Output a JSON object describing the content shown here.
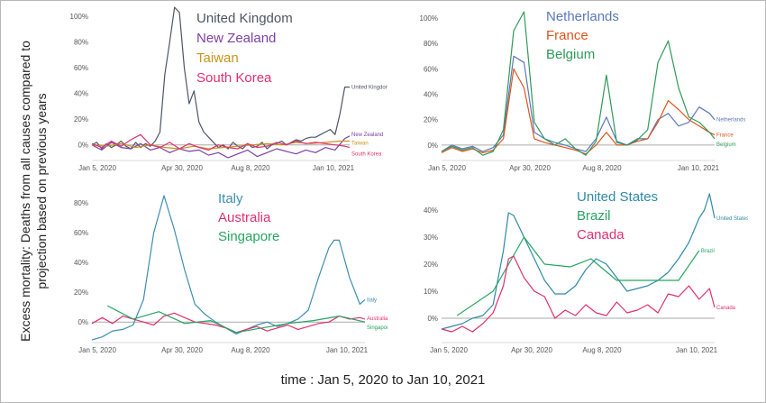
{
  "figure": {
    "ylabel_line1": "Excess mortality: Deaths from all causes compared to",
    "ylabel_line2": "projection based on previous years",
    "xlabel": "time : Jan 5, 2020 to Jan 10, 2021"
  },
  "chart_data": [
    {
      "type": "line",
      "x_ticks": [
        "Jan 5, 2020",
        "Apr 30, 2020",
        "Aug 8, 2020",
        "Jan 10, 2021"
      ],
      "y_ticks": [
        "0%",
        "20%",
        "40%",
        "60%",
        "80%",
        "100%"
      ],
      "ylim": [
        -10,
        105
      ],
      "grid": false,
      "legend_position": "top-center",
      "series": [
        {
          "name": "United Kingdom",
          "label": "United Kingdom",
          "color": "#4d5566",
          "x": [
            0,
            1,
            2,
            3,
            4,
            5,
            6,
            7,
            8,
            9,
            10,
            11,
            12,
            13,
            14,
            15,
            16,
            17,
            18,
            19,
            20,
            21,
            22,
            23,
            24,
            25,
            26,
            27,
            28,
            29,
            30,
            31,
            32,
            33,
            34,
            35,
            36,
            37,
            38,
            39,
            40,
            41,
            42,
            43,
            44,
            45,
            46,
            47,
            48,
            49,
            50,
            51,
            52,
            53
          ],
          "values": [
            0,
            2,
            -3,
            1,
            -2,
            0,
            3,
            -1,
            -3,
            2,
            -2,
            1,
            -1,
            3,
            10,
            55,
            80,
            107,
            103,
            60,
            32,
            42,
            18,
            10,
            6,
            2,
            -2,
            0,
            -3,
            2,
            -1,
            -3,
            1,
            -2,
            -1,
            2,
            -3,
            0,
            1,
            3,
            0,
            2,
            4,
            3,
            5,
            6,
            6,
            8,
            10,
            12,
            8,
            24,
            45,
            45
          ]
        },
        {
          "name": "New Zealand",
          "label": "New Zealand",
          "color": "#7e3fa6",
          "x": [
            0,
            2,
            4,
            6,
            8,
            10,
            12,
            14,
            16,
            18,
            20,
            22,
            24,
            26,
            28,
            30,
            32,
            34,
            36,
            38,
            40,
            42,
            44,
            46,
            48,
            50,
            52,
            53
          ],
          "values": [
            0,
            -4,
            2,
            -2,
            -3,
            1,
            -4,
            -2,
            -6,
            -3,
            -5,
            -4,
            -8,
            -6,
            -10,
            -7,
            -4,
            -9,
            -6,
            -3,
            -5,
            -7,
            -4,
            -6,
            -2,
            -4,
            5,
            7
          ]
        },
        {
          "name": "Taiwan",
          "label": "Taiwan",
          "color": "#c8941a",
          "x": [
            0,
            3,
            6,
            9,
            12,
            15,
            18,
            21,
            24,
            27,
            30,
            33,
            36,
            39,
            42,
            45,
            48,
            51,
            53
          ],
          "values": [
            0,
            -1,
            1,
            -2,
            0,
            -2,
            -3,
            -1,
            -3,
            -2,
            -1,
            0,
            1,
            0,
            2,
            1,
            2,
            3,
            3
          ]
        },
        {
          "name": "South Korea",
          "label": "South Korea",
          "color": "#e0306e",
          "x": [
            0,
            2,
            4,
            6,
            8,
            10,
            12,
            14,
            16,
            18,
            20,
            22,
            24,
            26,
            28,
            30,
            32,
            34,
            36,
            38,
            40,
            42,
            44,
            46,
            48,
            50,
            52,
            53
          ],
          "values": [
            1,
            -2,
            3,
            -1,
            4,
            8,
            0,
            -2,
            2,
            -3,
            1,
            -2,
            -4,
            0,
            -2,
            -3,
            1,
            -2,
            -1,
            2,
            0,
            3,
            1,
            2,
            1,
            0,
            -1,
            -2
          ]
        }
      ]
    },
    {
      "type": "line",
      "x_ticks": [
        "Jan 5, 2020",
        "Apr 30, 2020",
        "Aug 8, 2020",
        "Jan 10, 2021"
      ],
      "y_ticks": [
        "0%",
        "20%",
        "40%",
        "60%",
        "80%",
        "100%"
      ],
      "ylim": [
        -10,
        105
      ],
      "grid": false,
      "legend_position": "top-center",
      "series": [
        {
          "name": "Netherlands",
          "label": "Netherlands",
          "color": "#5a78b8",
          "x": [
            0,
            2,
            4,
            6,
            8,
            10,
            12,
            14,
            16,
            18,
            20,
            22,
            24,
            26,
            28,
            30,
            32,
            34,
            36,
            38,
            40,
            42,
            44,
            46,
            48,
            50,
            52,
            53
          ],
          "values": [
            -5,
            0,
            -3,
            -1,
            -5,
            -2,
            8,
            70,
            65,
            10,
            5,
            2,
            0,
            -3,
            -5,
            5,
            22,
            3,
            0,
            5,
            5,
            20,
            25,
            15,
            18,
            30,
            25,
            20
          ]
        },
        {
          "name": "France",
          "label": "France",
          "color": "#e0541c",
          "x": [
            0,
            2,
            4,
            6,
            8,
            10,
            12,
            14,
            16,
            18,
            20,
            22,
            24,
            26,
            28,
            30,
            32,
            34,
            36,
            38,
            40,
            42,
            44,
            46,
            48,
            50,
            52,
            53
          ],
          "values": [
            -6,
            -2,
            -5,
            -3,
            -6,
            -4,
            5,
            60,
            45,
            5,
            2,
            0,
            -2,
            -4,
            -7,
            0,
            10,
            0,
            0,
            3,
            5,
            18,
            35,
            28,
            20,
            15,
            10,
            8
          ]
        },
        {
          "name": "Belgium",
          "label": "Belgium",
          "color": "#2e9a5a",
          "x": [
            0,
            2,
            4,
            6,
            8,
            10,
            12,
            14,
            16,
            18,
            20,
            22,
            24,
            26,
            28,
            30,
            32,
            34,
            36,
            38,
            40,
            42,
            44,
            46,
            48,
            50,
            52,
            53
          ],
          "values": [
            -5,
            -1,
            -4,
            -2,
            -8,
            -5,
            12,
            90,
            105,
            18,
            5,
            0,
            5,
            -3,
            -8,
            3,
            55,
            2,
            0,
            4,
            12,
            65,
            82,
            45,
            22,
            18,
            10,
            5
          ]
        }
      ]
    },
    {
      "type": "line",
      "x_ticks": [
        "Jan 5, 2020",
        "Apr 30, 2020",
        "Aug 8, 2020",
        "Jan 10, 2021"
      ],
      "y_ticks": [
        "0%",
        "20%",
        "40%",
        "60%",
        "80%"
      ],
      "ylim": [
        -12,
        88
      ],
      "grid": false,
      "legend_position": "top-center",
      "series": [
        {
          "name": "Italy",
          "label": "Italy",
          "color": "#3d8eb0",
          "x": [
            0,
            2,
            4,
            6,
            8,
            10,
            12,
            14,
            16,
            18,
            20,
            22,
            24,
            26,
            28,
            30,
            32,
            34,
            36,
            38,
            40,
            42,
            44,
            46,
            47,
            48,
            50,
            52,
            53
          ],
          "values": [
            -12,
            -10,
            -6,
            -5,
            -2,
            15,
            60,
            85,
            62,
            35,
            12,
            5,
            0,
            -4,
            -8,
            -5,
            -2,
            0,
            -3,
            -1,
            2,
            8,
            30,
            50,
            55,
            55,
            30,
            12,
            15
          ]
        },
        {
          "name": "Australia",
          "label": "Australia",
          "color": "#e0306e",
          "x": [
            0,
            2,
            4,
            6,
            8,
            10,
            12,
            14,
            16,
            18,
            20,
            22,
            24,
            26,
            28,
            30,
            32,
            34,
            36,
            38,
            40,
            42,
            44,
            46,
            48,
            50,
            52,
            53
          ],
          "values": [
            -1,
            3,
            -1,
            4,
            2,
            0,
            -2,
            4,
            6,
            3,
            0,
            -1,
            -2,
            -4,
            -7,
            -5,
            -3,
            -6,
            -4,
            -2,
            -5,
            -3,
            -1,
            0,
            4,
            2,
            3,
            2
          ]
        },
        {
          "name": "Singapore",
          "label": "Singapore",
          "color": "#27a560",
          "x": [
            3,
            8,
            13,
            18,
            23,
            28,
            33,
            38,
            43,
            48,
            53
          ],
          "values": [
            11,
            2,
            7,
            -1,
            1,
            -7,
            -4,
            -1,
            1,
            4,
            0
          ]
        }
      ]
    },
    {
      "type": "line",
      "x_ticks": [
        "Jan 5, 2020",
        "Apr 30, 2020",
        "Aug 8, 2020",
        "Jan 10, 2021"
      ],
      "y_ticks": [
        "0%",
        "10%",
        "20%",
        "30%",
        "40%"
      ],
      "ylim": [
        -8,
        47
      ],
      "grid": false,
      "legend_position": "top-center",
      "series": [
        {
          "name": "United States",
          "label": "United States",
          "color": "#2f8aa6",
          "x": [
            0,
            2,
            4,
            6,
            8,
            10,
            12,
            13,
            14,
            16,
            18,
            20,
            22,
            24,
            26,
            28,
            30,
            32,
            34,
            36,
            38,
            40,
            42,
            44,
            46,
            48,
            50,
            51,
            52,
            53
          ],
          "values": [
            -4,
            -3,
            -2,
            0,
            1,
            5,
            25,
            39,
            38,
            30,
            22,
            14,
            9,
            9,
            12,
            18,
            22,
            20,
            15,
            10,
            11,
            12,
            14,
            17,
            22,
            28,
            37,
            40,
            46,
            37
          ]
        },
        {
          "name": "Brazil",
          "label": "Brazil",
          "color": "#27a560",
          "x": [
            3,
            10,
            16,
            20,
            25,
            29,
            34,
            40,
            46,
            50
          ],
          "values": [
            1,
            10,
            30,
            20,
            19,
            22,
            14,
            14,
            14,
            25
          ]
        },
        {
          "name": "Canada",
          "label": "Canada",
          "color": "#e0306e",
          "x": [
            0,
            2,
            4,
            6,
            8,
            10,
            12,
            13,
            14,
            16,
            18,
            20,
            22,
            24,
            26,
            28,
            30,
            32,
            34,
            36,
            38,
            40,
            42,
            44,
            46,
            48,
            50,
            51,
            52,
            53
          ],
          "values": [
            -4,
            -5,
            -3,
            -5,
            -2,
            2,
            12,
            22,
            23,
            15,
            10,
            8,
            0,
            3,
            1,
            5,
            2,
            1,
            6,
            2,
            3,
            5,
            2,
            9,
            8,
            12,
            7,
            9,
            11,
            4
          ]
        }
      ]
    }
  ]
}
